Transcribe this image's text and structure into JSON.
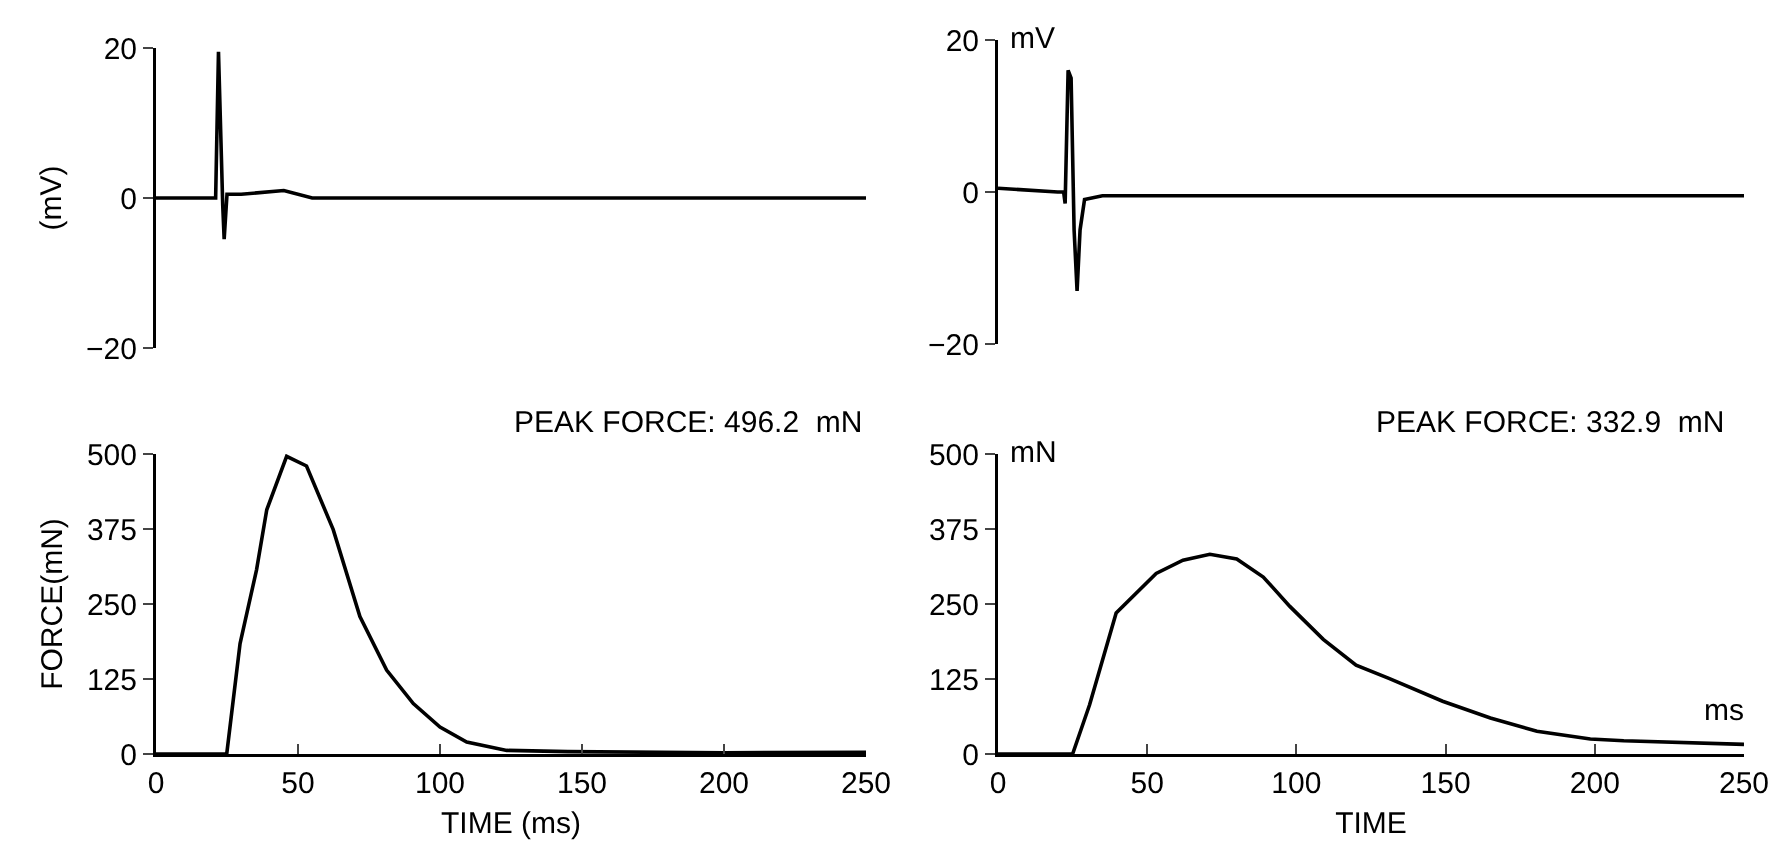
{
  "chart_data": [
    {
      "type": "line",
      "ylabel": "(mV)",
      "x": [
        0,
        21,
        22,
        23.5,
        24,
        25,
        30,
        45,
        55,
        250
      ],
      "series": [
        {
          "color": "#000000",
          "values": [
            0,
            0,
            19.5,
            -1,
            -5.5,
            0.5,
            0.5,
            1,
            0,
            0
          ]
        }
      ],
      "xlim": [
        0,
        250
      ],
      "ylim": [
        -20,
        20
      ],
      "yticks": [
        -20,
        0,
        20
      ],
      "tick_labels": "y"
    },
    {
      "type": "line",
      "annotations": [
        "mV"
      ],
      "x": [
        0,
        20,
        22,
        22.5,
        23.5,
        24.5,
        25.5,
        26.5,
        27.5,
        29,
        35,
        250
      ],
      "series": [
        {
          "color": "#000000",
          "values": [
            0.5,
            0,
            0,
            -1.5,
            16,
            15,
            -5,
            -13,
            -5,
            -1,
            -0.5,
            -0.5
          ]
        }
      ],
      "xlim": [
        0,
        250
      ],
      "ylim": [
        -20,
        20
      ],
      "yticks": [
        -20,
        0,
        20
      ],
      "tick_labels": "y"
    },
    {
      "type": "line",
      "xlabel": "TIME (ms)",
      "ylabel": "FORCE(mN)",
      "annotations": [
        "PEAK FORCE: 496.2  mN"
      ],
      "x": [
        0,
        24.9,
        29.6,
        35.4,
        39,
        46,
        53,
        62.4,
        71.8,
        81.2,
        90.6,
        100,
        109.4,
        123.5,
        145,
        200,
        250
      ],
      "series": [
        {
          "color": "#000000",
          "values": [
            0,
            0,
            184,
            307,
            407,
            496.2,
            480,
            374,
            229,
            140,
            84,
            45,
            20,
            6,
            4,
            2,
            3
          ]
        }
      ],
      "xlim": [
        0,
        250
      ],
      "xticks": [
        0,
        50,
        100,
        150,
        200,
        250
      ],
      "ylim": [
        0,
        500
      ],
      "yticks": [
        0,
        125,
        250,
        375,
        500
      ]
    },
    {
      "type": "line",
      "xlabel": "TIME",
      "annotations": [
        "PEAK FORCE: 332.9  mN",
        "mN",
        "ms"
      ],
      "x": [
        0,
        25,
        30.7,
        39.6,
        53,
        62,
        71,
        80,
        88.9,
        97.8,
        109,
        120,
        131,
        149,
        165,
        180.6,
        198.5,
        209.7,
        250
      ],
      "series": [
        {
          "color": "#000000",
          "values": [
            0,
            0,
            82,
            235,
            301,
            323,
            332.9,
            325,
            295,
            246,
            191,
            148,
            126,
            88,
            60,
            38,
            25,
            22,
            16
          ]
        }
      ],
      "xlim": [
        0,
        250
      ],
      "xticks": [
        0,
        50,
        100,
        150,
        200,
        250
      ],
      "ylim": [
        0,
        500
      ],
      "yticks": [
        0,
        125,
        250,
        375,
        500
      ]
    }
  ]
}
